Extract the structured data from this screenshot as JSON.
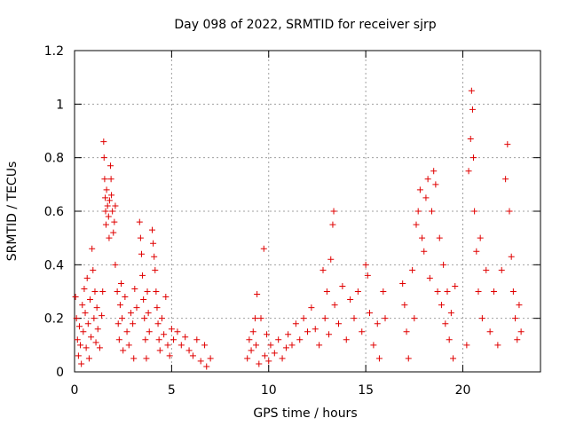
{
  "chart_data": {
    "type": "scatter",
    "title": "Day 098 of 2022, SRMTID for receiver sjrp",
    "xlabel": "GPS time / hours",
    "ylabel": "SRMTID / TECUs",
    "xlim": [
      0,
      24
    ],
    "ylim": [
      0,
      1.2
    ],
    "x_ticks": [
      0,
      5,
      10,
      15,
      20
    ],
    "y_ticks": [
      0,
      0.2,
      0.4,
      0.6,
      0.8,
      1,
      1.2
    ],
    "x_tick_labels": [
      "0",
      "5",
      "10",
      "15",
      "20"
    ],
    "y_tick_labels": [
      "0",
      "0.2",
      "0.4",
      "0.6",
      "0.8",
      "1",
      "1.2"
    ],
    "grid": true,
    "marker": "+",
    "marker_color": "#e00000",
    "series": [
      {
        "name": "SRMTID",
        "points": [
          [
            0.05,
            0.28
          ],
          [
            0.1,
            0.2
          ],
          [
            0.15,
            0.12
          ],
          [
            0.2,
            0.06
          ],
          [
            0.25,
            0.17
          ],
          [
            0.3,
            0.1
          ],
          [
            0.35,
            0.03
          ],
          [
            0.4,
            0.25
          ],
          [
            0.45,
            0.15
          ],
          [
            0.5,
            0.31
          ],
          [
            0.55,
            0.22
          ],
          [
            0.6,
            0.09
          ],
          [
            0.65,
            0.35
          ],
          [
            0.7,
            0.18
          ],
          [
            0.75,
            0.05
          ],
          [
            0.8,
            0.27
          ],
          [
            0.85,
            0.13
          ],
          [
            0.9,
            0.46
          ],
          [
            0.95,
            0.38
          ],
          [
            1.0,
            0.2
          ],
          [
            1.05,
            0.3
          ],
          [
            1.1,
            0.11
          ],
          [
            1.15,
            0.24
          ],
          [
            1.2,
            0.16
          ],
          [
            1.3,
            0.09
          ],
          [
            1.4,
            0.21
          ],
          [
            1.45,
            0.3
          ],
          [
            1.5,
            0.86
          ],
          [
            1.52,
            0.8
          ],
          [
            1.55,
            0.72
          ],
          [
            1.58,
            0.65
          ],
          [
            1.6,
            0.6
          ],
          [
            1.62,
            0.55
          ],
          [
            1.65,
            0.68
          ],
          [
            1.7,
            0.62
          ],
          [
            1.75,
            0.58
          ],
          [
            1.78,
            0.5
          ],
          [
            1.8,
            0.64
          ],
          [
            1.85,
            0.77
          ],
          [
            1.88,
            0.72
          ],
          [
            1.9,
            0.66
          ],
          [
            1.95,
            0.6
          ],
          [
            2.0,
            0.52
          ],
          [
            2.05,
            0.56
          ],
          [
            2.1,
            0.62
          ],
          [
            2.1,
            0.4
          ],
          [
            2.2,
            0.3
          ],
          [
            2.25,
            0.18
          ],
          [
            2.3,
            0.12
          ],
          [
            2.35,
            0.25
          ],
          [
            2.4,
            0.33
          ],
          [
            2.45,
            0.2
          ],
          [
            2.5,
            0.08
          ],
          [
            2.6,
            0.28
          ],
          [
            2.7,
            0.15
          ],
          [
            2.8,
            0.1
          ],
          [
            2.9,
            0.22
          ],
          [
            3.0,
            0.18
          ],
          [
            3.05,
            0.05
          ],
          [
            3.1,
            0.31
          ],
          [
            3.2,
            0.24
          ],
          [
            3.35,
            0.56
          ],
          [
            3.4,
            0.5
          ],
          [
            3.45,
            0.44
          ],
          [
            3.5,
            0.36
          ],
          [
            3.55,
            0.27
          ],
          [
            3.6,
            0.2
          ],
          [
            3.65,
            0.12
          ],
          [
            3.7,
            0.05
          ],
          [
            3.75,
            0.3
          ],
          [
            3.8,
            0.22
          ],
          [
            3.85,
            0.15
          ],
          [
            4.0,
            0.53
          ],
          [
            4.05,
            0.48
          ],
          [
            4.1,
            0.43
          ],
          [
            4.15,
            0.38
          ],
          [
            4.2,
            0.3
          ],
          [
            4.25,
            0.24
          ],
          [
            4.3,
            0.18
          ],
          [
            4.35,
            0.12
          ],
          [
            4.4,
            0.08
          ],
          [
            4.5,
            0.2
          ],
          [
            4.6,
            0.14
          ],
          [
            4.7,
            0.28
          ],
          [
            4.8,
            0.1
          ],
          [
            4.9,
            0.06
          ],
          [
            5.0,
            0.16
          ],
          [
            5.1,
            0.12
          ],
          [
            5.3,
            0.15
          ],
          [
            5.5,
            0.1
          ],
          [
            5.7,
            0.13
          ],
          [
            5.9,
            0.08
          ],
          [
            6.1,
            0.06
          ],
          [
            6.3,
            0.12
          ],
          [
            6.5,
            0.04
          ],
          [
            6.7,
            0.1
          ],
          [
            6.8,
            0.02
          ],
          [
            7.0,
            0.05
          ],
          [
            8.9,
            0.05
          ],
          [
            9.0,
            0.12
          ],
          [
            9.1,
            0.08
          ],
          [
            9.2,
            0.15
          ],
          [
            9.3,
            0.2
          ],
          [
            9.35,
            0.1
          ],
          [
            9.4,
            0.29
          ],
          [
            9.5,
            0.03
          ],
          [
            9.6,
            0.2
          ],
          [
            9.75,
            0.46
          ],
          [
            9.8,
            0.06
          ],
          [
            9.9,
            0.14
          ],
          [
            10.0,
            0.04
          ],
          [
            10.1,
            0.1
          ],
          [
            10.3,
            0.07
          ],
          [
            10.5,
            0.12
          ],
          [
            10.7,
            0.05
          ],
          [
            10.9,
            0.09
          ],
          [
            11.0,
            0.14
          ],
          [
            11.2,
            0.1
          ],
          [
            11.4,
            0.18
          ],
          [
            11.6,
            0.12
          ],
          [
            11.8,
            0.2
          ],
          [
            12.0,
            0.15
          ],
          [
            12.2,
            0.24
          ],
          [
            12.4,
            0.16
          ],
          [
            12.6,
            0.1
          ],
          [
            12.8,
            0.38
          ],
          [
            12.9,
            0.2
          ],
          [
            13.0,
            0.3
          ],
          [
            13.1,
            0.14
          ],
          [
            13.2,
            0.42
          ],
          [
            13.3,
            0.55
          ],
          [
            13.35,
            0.6
          ],
          [
            13.4,
            0.25
          ],
          [
            13.6,
            0.18
          ],
          [
            13.8,
            0.32
          ],
          [
            14.0,
            0.12
          ],
          [
            14.2,
            0.27
          ],
          [
            14.4,
            0.2
          ],
          [
            14.6,
            0.3
          ],
          [
            14.8,
            0.15
          ],
          [
            15.0,
            0.4
          ],
          [
            15.1,
            0.36
          ],
          [
            15.2,
            0.22
          ],
          [
            15.4,
            0.1
          ],
          [
            15.6,
            0.18
          ],
          [
            15.7,
            0.05
          ],
          [
            15.9,
            0.3
          ],
          [
            16.0,
            0.2
          ],
          [
            16.9,
            0.33
          ],
          [
            17.0,
            0.25
          ],
          [
            17.1,
            0.15
          ],
          [
            17.2,
            0.05
          ],
          [
            17.4,
            0.38
          ],
          [
            17.5,
            0.2
          ],
          [
            17.6,
            0.55
          ],
          [
            17.7,
            0.6
          ],
          [
            17.8,
            0.68
          ],
          [
            17.9,
            0.5
          ],
          [
            18.0,
            0.45
          ],
          [
            18.1,
            0.65
          ],
          [
            18.2,
            0.72
          ],
          [
            18.3,
            0.35
          ],
          [
            18.4,
            0.6
          ],
          [
            18.5,
            0.75
          ],
          [
            18.6,
            0.7
          ],
          [
            18.7,
            0.3
          ],
          [
            18.8,
            0.5
          ],
          [
            18.9,
            0.25
          ],
          [
            19.0,
            0.4
          ],
          [
            19.1,
            0.18
          ],
          [
            19.2,
            0.3
          ],
          [
            19.3,
            0.12
          ],
          [
            19.4,
            0.22
          ],
          [
            19.5,
            0.05
          ],
          [
            19.6,
            0.32
          ],
          [
            20.2,
            0.1
          ],
          [
            20.3,
            0.75
          ],
          [
            20.4,
            0.87
          ],
          [
            20.45,
            1.05
          ],
          [
            20.5,
            0.98
          ],
          [
            20.55,
            0.8
          ],
          [
            20.6,
            0.6
          ],
          [
            20.7,
            0.45
          ],
          [
            20.8,
            0.3
          ],
          [
            20.9,
            0.5
          ],
          [
            21.0,
            0.2
          ],
          [
            21.2,
            0.38
          ],
          [
            21.4,
            0.15
          ],
          [
            21.6,
            0.3
          ],
          [
            21.8,
            0.1
          ],
          [
            22.0,
            0.38
          ],
          [
            22.2,
            0.72
          ],
          [
            22.3,
            0.85
          ],
          [
            22.4,
            0.6
          ],
          [
            22.5,
            0.43
          ],
          [
            22.6,
            0.3
          ],
          [
            22.7,
            0.2
          ],
          [
            22.8,
            0.12
          ],
          [
            22.9,
            0.25
          ],
          [
            23.0,
            0.15
          ]
        ]
      }
    ]
  }
}
